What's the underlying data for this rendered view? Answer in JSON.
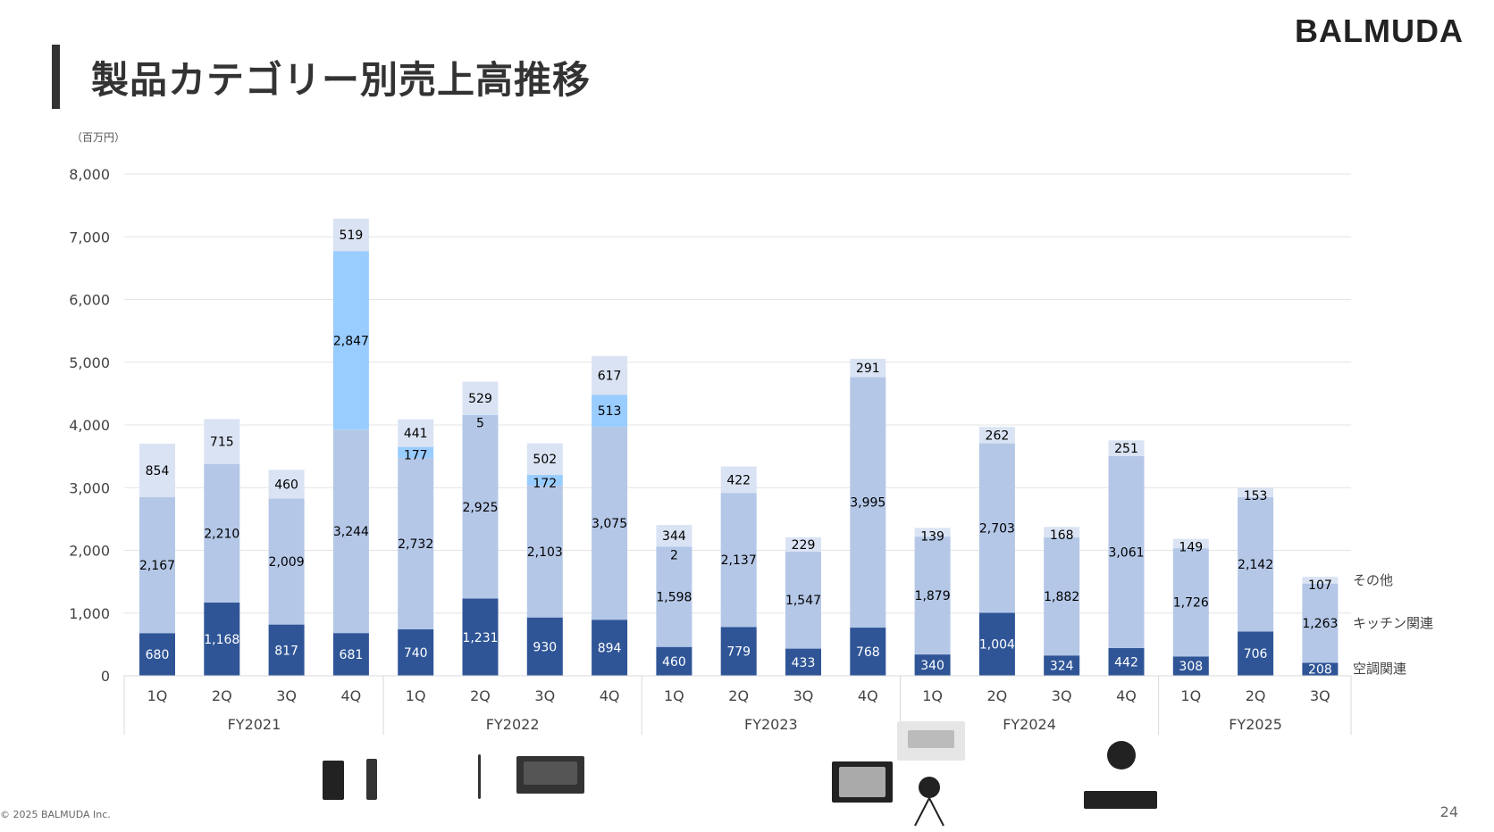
{
  "header": {
    "title": "製品カテゴリー別売上高推移",
    "logo": "BALMUDA"
  },
  "footer": {
    "copyright": "© 2025 BALMUDA Inc.",
    "page_number": "24"
  },
  "chart_data": {
    "type": "bar",
    "stacked": true,
    "unit_label": "（百万円）",
    "ylim": [
      0,
      8000
    ],
    "yticks": [
      0,
      1000,
      2000,
      3000,
      4000,
      5000,
      6000,
      7000,
      8000
    ],
    "ytick_labels": [
      "0",
      "1,000",
      "2,000",
      "3,000",
      "4,000",
      "5,000",
      "6,000",
      "7,000",
      "8,000"
    ],
    "grid": true,
    "groups": [
      {
        "label": "FY2021",
        "quarters": [
          "1Q",
          "2Q",
          "3Q",
          "4Q"
        ]
      },
      {
        "label": "FY2022",
        "quarters": [
          "1Q",
          "2Q",
          "3Q",
          "4Q"
        ]
      },
      {
        "label": "FY2023",
        "quarters": [
          "1Q",
          "2Q",
          "3Q",
          "4Q"
        ]
      },
      {
        "label": "FY2024",
        "quarters": [
          "1Q",
          "2Q",
          "3Q",
          "4Q"
        ]
      },
      {
        "label": "FY2025",
        "quarters": [
          "1Q",
          "2Q",
          "3Q"
        ]
      }
    ],
    "series": [
      {
        "name": "空調関連",
        "color": "#2f5597",
        "label_color": "#ffffff",
        "values": [
          680,
          1168,
          817,
          681,
          740,
          1231,
          930,
          894,
          460,
          779,
          433,
          768,
          340,
          1004,
          324,
          442,
          308,
          706,
          208
        ]
      },
      {
        "name": "キッチン関連",
        "color": "#b4c7e7",
        "label_color": "#000000",
        "values": [
          2167,
          2210,
          2009,
          3244,
          2732,
          2925,
          2103,
          3075,
          1598,
          2137,
          1547,
          3995,
          1879,
          2703,
          1882,
          3061,
          1726,
          2142,
          1263
        ]
      },
      {
        "color": "#99ccff",
        "label_color": "#000000",
        "values": [
          0,
          0,
          0,
          2847,
          177,
          5,
          172,
          513,
          2,
          0,
          0,
          0,
          0,
          0,
          0,
          0,
          0,
          0,
          0
        ]
      },
      {
        "name": "その他",
        "color": "#dae3f3",
        "label_color": "#000000",
        "values": [
          854,
          715,
          460,
          519,
          441,
          529,
          502,
          617,
          344,
          422,
          229,
          291,
          139,
          262,
          168,
          251,
          149,
          153,
          107
        ]
      }
    ],
    "legend_placement": "right"
  }
}
